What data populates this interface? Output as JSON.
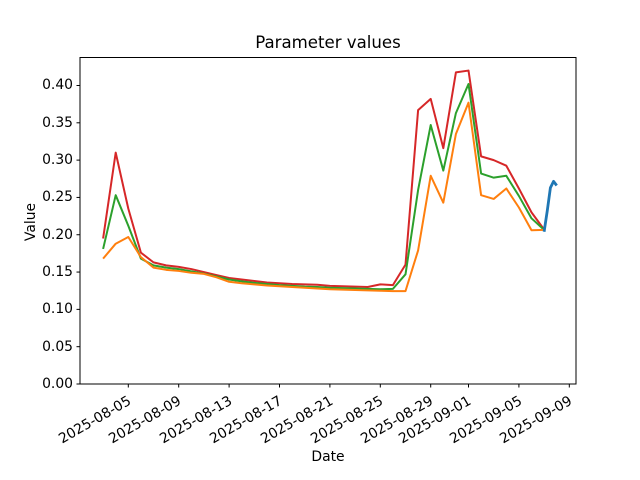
{
  "figure": {
    "title": "Parameter values",
    "xlabel": "Date",
    "ylabel": "Value"
  },
  "chart_data": {
    "type": "line",
    "title": "Parameter values",
    "xlabel": "Date",
    "ylabel": "Value",
    "grid": false,
    "legend": null,
    "xlim": [
      "2025-08-01T04:00:00",
      "2025-09-09T12:45:00"
    ],
    "ylim": [
      0,
      0.4375
    ],
    "y_ticks": [
      0.0,
      0.05,
      0.1,
      0.15,
      0.2,
      0.25,
      0.3,
      0.35,
      0.4
    ],
    "y_tick_labels": [
      "0.00",
      "0.05",
      "0.10",
      "0.15",
      "0.20",
      "0.25",
      "0.30",
      "0.35",
      "0.40"
    ],
    "x_ticks": [
      "2025-08-05",
      "2025-08-09",
      "2025-08-13",
      "2025-08-17",
      "2025-08-21",
      "2025-08-25",
      "2025-08-29",
      "2025-09-01",
      "2025-09-05",
      "2025-09-09"
    ],
    "x_tick_labels": [
      "2025-08-05",
      "2025-08-09",
      "2025-08-13",
      "2025-08-17",
      "2025-08-21",
      "2025-08-25",
      "2025-08-29",
      "2025-09-01",
      "2025-09-05",
      "2025-09-09"
    ],
    "dates": [
      "2025-08-03",
      "2025-08-04",
      "2025-08-05",
      "2025-08-06",
      "2025-08-07",
      "2025-08-08",
      "2025-08-09",
      "2025-08-10",
      "2025-08-11",
      "2025-08-12",
      "2025-08-13",
      "2025-08-14",
      "2025-08-15",
      "2025-08-16",
      "2025-08-17",
      "2025-08-18",
      "2025-08-19",
      "2025-08-20",
      "2025-08-21",
      "2025-08-22",
      "2025-08-23",
      "2025-08-24",
      "2025-08-25",
      "2025-08-26",
      "2025-08-27",
      "2025-08-28",
      "2025-08-29",
      "2025-08-30",
      "2025-08-31",
      "2025-09-01",
      "2025-09-02",
      "2025-09-03",
      "2025-09-04",
      "2025-09-05",
      "2025-09-06",
      "2025-09-07"
    ],
    "series": [
      {
        "name": "series-red",
        "color": "#d62728",
        "linewidth": 2,
        "values": [
          0.195,
          0.31,
          0.235,
          0.176,
          0.163,
          0.159,
          0.157,
          0.154,
          0.15,
          0.146,
          0.142,
          0.14,
          0.138,
          0.136,
          0.135,
          0.134,
          0.1335,
          0.133,
          0.1315,
          0.131,
          0.1305,
          0.13,
          0.1335,
          0.1325,
          0.16,
          0.367,
          0.382,
          0.316,
          0.4175,
          0.42,
          0.305,
          0.3,
          0.2925,
          0.262,
          0.23,
          0.207
        ]
      },
      {
        "name": "series-green",
        "color": "#2ca02c",
        "linewidth": 2,
        "values": [
          0.181,
          0.253,
          0.212,
          0.168,
          0.159,
          0.156,
          0.154,
          0.151,
          0.148,
          0.144,
          0.14,
          0.1375,
          0.1355,
          0.134,
          0.1325,
          0.1315,
          0.1305,
          0.13,
          0.129,
          0.1285,
          0.128,
          0.1275,
          0.127,
          0.1275,
          0.147,
          0.26,
          0.347,
          0.286,
          0.363,
          0.402,
          0.282,
          0.2765,
          0.279,
          0.252,
          0.222,
          0.2065
        ]
      },
      {
        "name": "series-orange",
        "color": "#ff7f0e",
        "linewidth": 2,
        "values": [
          0.168,
          0.188,
          0.197,
          0.17,
          0.156,
          0.153,
          0.1515,
          0.149,
          0.1475,
          0.143,
          0.137,
          0.135,
          0.1335,
          0.132,
          0.131,
          0.13,
          0.129,
          0.128,
          0.127,
          0.1265,
          0.126,
          0.1255,
          0.125,
          0.1245,
          0.1245,
          0.179,
          0.279,
          0.243,
          0.335,
          0.377,
          0.253,
          0.248,
          0.262,
          0.2365,
          0.206,
          0.2065
        ]
      },
      {
        "name": "series-blue",
        "color": "#1f77b4",
        "linewidth": 2.8,
        "x": [
          "2025-09-07T00:00:00",
          "2025-09-07T06:00:00",
          "2025-09-07T12:00:00",
          "2025-09-07T18:00:00",
          "2025-09-08T00:00:00"
        ],
        "values": [
          0.204,
          0.232,
          0.263,
          0.2715,
          0.266
        ]
      }
    ]
  }
}
